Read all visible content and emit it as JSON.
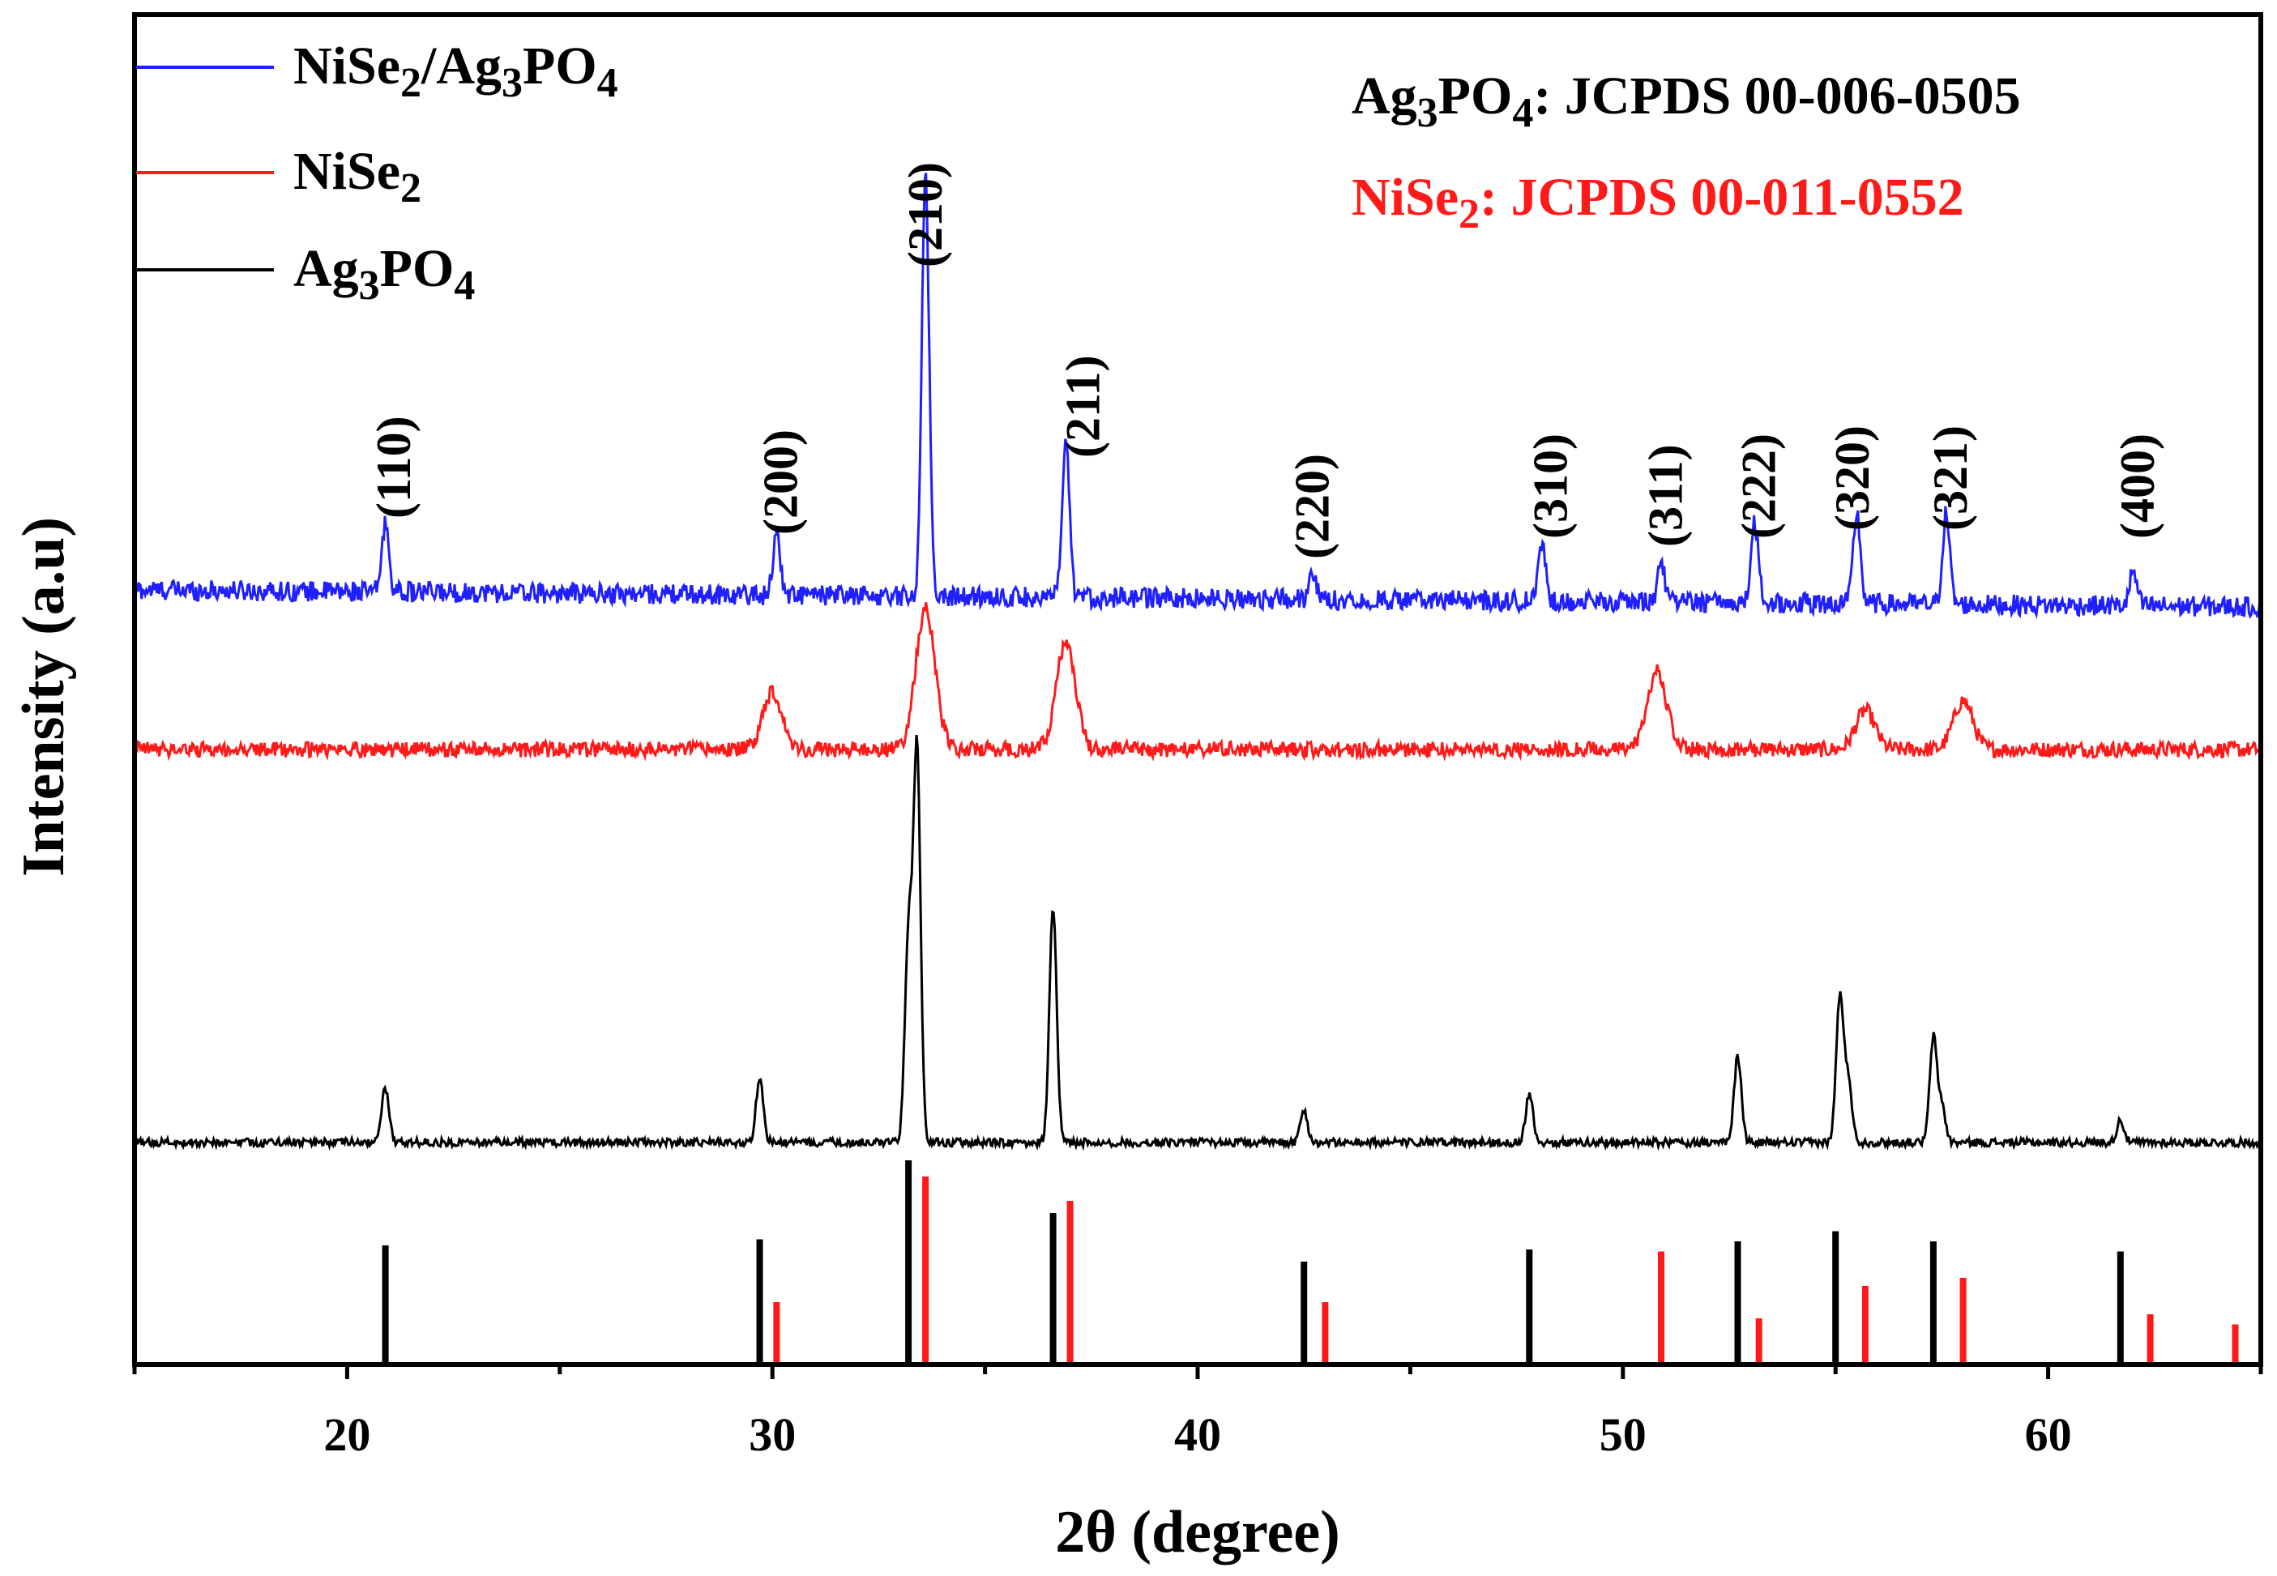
{
  "chart_data": {
    "type": "line",
    "title": "",
    "xlabel": "2θ (degree)",
    "ylabel": "Intensity (a.u)",
    "xlim": [
      15,
      65
    ],
    "x_ticks": [
      20,
      30,
      40,
      50,
      60
    ],
    "y_ticks_shown": false,
    "series": [
      {
        "name": "NiSe2/Ag3PO4",
        "label_parts": [
          [
            "NiSe",
            ""
          ],
          [
            "2",
            "sub"
          ],
          [
            "/Ag",
            ""
          ],
          [
            "3",
            "sub"
          ],
          [
            "PO",
            ""
          ],
          [
            "4",
            "sub"
          ]
        ],
        "color": "#1f1fff",
        "baseline": 0.8,
        "noise": 0.018,
        "peaks": [
          {
            "x": 20.9,
            "h": 0.12
          },
          {
            "x": 30.1,
            "h": 0.11
          },
          {
            "x": 33.6,
            "h": 0.75
          },
          {
            "x": 36.9,
            "h": 0.27
          },
          {
            "x": 42.7,
            "h": 0.04
          },
          {
            "x": 48.1,
            "h": 0.1
          },
          {
            "x": 50.9,
            "h": 0.07
          },
          {
            "x": 53.1,
            "h": 0.14
          },
          {
            "x": 55.5,
            "h": 0.16
          },
          {
            "x": 57.6,
            "h": 0.16
          },
          {
            "x": 62.0,
            "h": 0.06
          }
        ]
      },
      {
        "name": "NiSe2",
        "label_parts": [
          [
            "NiSe",
            ""
          ],
          [
            "2",
            "sub"
          ]
        ],
        "color": "#ff1a1a",
        "baseline": 0.58,
        "noise": 0.016,
        "peaks": [
          {
            "x": 30.0,
            "h": 0.12
          },
          {
            "x": 33.6,
            "h": 0.29
          },
          {
            "x": 36.9,
            "h": 0.22
          },
          {
            "x": 50.8,
            "h": 0.16
          },
          {
            "x": 55.7,
            "h": 0.08
          },
          {
            "x": 58.0,
            "h": 0.1
          }
        ]
      },
      {
        "name": "Ag3PO4",
        "label_parts": [
          [
            "Ag",
            ""
          ],
          [
            "3",
            "sub"
          ],
          [
            "PO",
            ""
          ],
          [
            "4",
            "sub"
          ]
        ],
        "color": "#000000",
        "baseline": 0.0,
        "noise": 0.009,
        "peaks": [
          {
            "x": 20.9,
            "h": 0.12
          },
          {
            "x": 29.7,
            "h": 0.14
          },
          {
            "x": 33.2,
            "h": 0.45
          },
          {
            "x": 33.4,
            "h": 0.86
          },
          {
            "x": 36.6,
            "h": 0.52
          },
          {
            "x": 42.5,
            "h": 0.07
          },
          {
            "x": 47.8,
            "h": 0.11
          },
          {
            "x": 52.7,
            "h": 0.19
          },
          {
            "x": 55.1,
            "h": 0.32
          },
          {
            "x": 55.3,
            "h": 0.14
          },
          {
            "x": 57.3,
            "h": 0.23
          },
          {
            "x": 57.5,
            "h": 0.08
          },
          {
            "x": 61.7,
            "h": 0.05
          }
        ]
      }
    ],
    "reference_lines": {
      "Ag3PO4": {
        "label_parts": [
          [
            "Ag",
            ""
          ],
          [
            "3",
            "sub"
          ],
          [
            "PO",
            ""
          ],
          [
            "4",
            "sub"
          ],
          [
            ": JCPDS 00-006-0505",
            ""
          ]
        ],
        "color": "#000000",
        "positions": [
          20.9,
          29.7,
          33.2,
          36.6,
          42.5,
          47.8,
          52.7,
          55.0,
          57.3,
          61.7
        ],
        "intensities": [
          58,
          61,
          100,
          74,
          50,
          56,
          60,
          65,
          60,
          55
        ]
      },
      "NiSe2": {
        "label_parts": [
          [
            "NiSe",
            ""
          ],
          [
            "2",
            "sub"
          ],
          [
            ": JCPDS 00-011-0552",
            ""
          ]
        ],
        "color": "#ff1a1a",
        "positions": [
          30.1,
          33.6,
          37.0,
          43.0,
          50.9,
          53.2,
          55.7,
          58.0,
          62.4,
          64.4
        ],
        "intensities": [
          30,
          92,
          80,
          30,
          55,
          22,
          38,
          42,
          24,
          19
        ]
      }
    },
    "hkl_labels": [
      {
        "text": "(110)",
        "x": 21.1
      },
      {
        "text": "(200)",
        "x": 30.2
      },
      {
        "text": "(210)",
        "x": 33.6
      },
      {
        "text": "(211)",
        "x": 37.3
      },
      {
        "text": "(220)",
        "x": 42.7
      },
      {
        "text": "(310)",
        "x": 48.3
      },
      {
        "text": "(311)",
        "x": 51.0
      },
      {
        "text": "(222)",
        "x": 53.2
      },
      {
        "text": "(320)",
        "x": 55.4
      },
      {
        "text": "(321)",
        "x": 57.7
      },
      {
        "text": "(400)",
        "x": 62.1
      }
    ]
  }
}
